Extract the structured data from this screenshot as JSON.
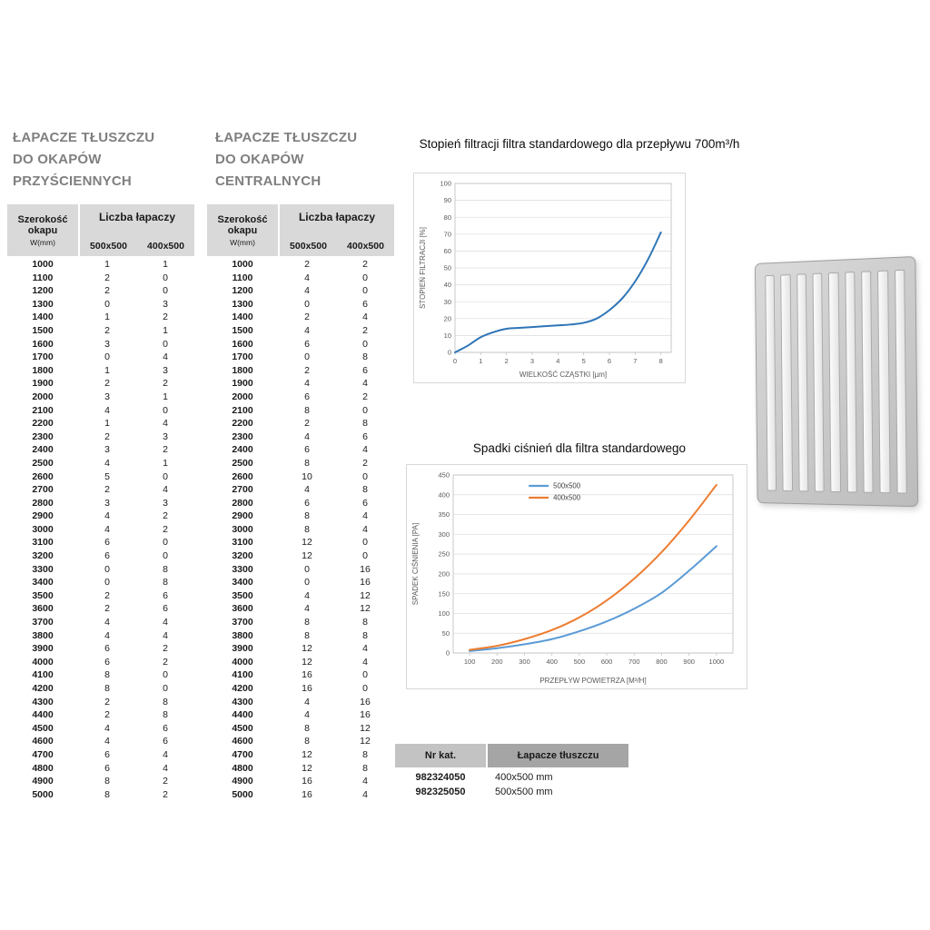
{
  "colors": {
    "table_header_bg": "#d9d9d9",
    "section_title_gray": "#7f7f7f"
  },
  "left_table": {
    "title": "ŁAPACZE TŁUSZCZU\nDO OKAPÓW\nPRZYŚCIENNYCH",
    "header": {
      "width_label": "Szerokość okapu",
      "width_unit": "W(mm)",
      "group_label": "Liczba łapaczy",
      "columns": [
        "500x500",
        "400x500"
      ]
    },
    "rows": [
      [
        "1000",
        1,
        1
      ],
      [
        "1100",
        2,
        0
      ],
      [
        "1200",
        2,
        0
      ],
      [
        "1300",
        0,
        3
      ],
      [
        "1400",
        1,
        2
      ],
      [
        "1500",
        2,
        1
      ],
      [
        "1600",
        3,
        0
      ],
      [
        "1700",
        0,
        4
      ],
      [
        "1800",
        1,
        3
      ],
      [
        "1900",
        2,
        2
      ],
      [
        "2000",
        3,
        1
      ],
      [
        "2100",
        4,
        0
      ],
      [
        "2200",
        1,
        4
      ],
      [
        "2300",
        2,
        3
      ],
      [
        "2400",
        3,
        2
      ],
      [
        "2500",
        4,
        1
      ],
      [
        "2600",
        5,
        0
      ],
      [
        "2700",
        2,
        4
      ],
      [
        "2800",
        3,
        3
      ],
      [
        "2900",
        4,
        2
      ],
      [
        "3000",
        4,
        2
      ],
      [
        "3100",
        6,
        0
      ],
      [
        "3200",
        6,
        0
      ],
      [
        "3300",
        0,
        8
      ],
      [
        "3400",
        0,
        8
      ],
      [
        "3500",
        2,
        6
      ],
      [
        "3600",
        2,
        6
      ],
      [
        "3700",
        4,
        4
      ],
      [
        "3800",
        4,
        4
      ],
      [
        "3900",
        6,
        2
      ],
      [
        "4000",
        6,
        2
      ],
      [
        "4100",
        8,
        0
      ],
      [
        "4200",
        8,
        0
      ],
      [
        "4300",
        2,
        8
      ],
      [
        "4400",
        2,
        8
      ],
      [
        "4500",
        4,
        6
      ],
      [
        "4600",
        4,
        6
      ],
      [
        "4700",
        6,
        4
      ],
      [
        "4800",
        6,
        4
      ],
      [
        "4900",
        8,
        2
      ],
      [
        "5000",
        8,
        2
      ]
    ]
  },
  "center_table": {
    "title": "ŁAPACZE TŁUSZCZU\nDO OKAPÓW\nCENTRALNYCH",
    "header": {
      "width_label": "Szerokość okapu",
      "width_unit": "W(mm)",
      "group_label": "Liczba łapaczy",
      "columns": [
        "500x500",
        "400x500"
      ]
    },
    "rows": [
      [
        "1000",
        2,
        2
      ],
      [
        "1100",
        4,
        0
      ],
      [
        "1200",
        4,
        0
      ],
      [
        "1300",
        0,
        6
      ],
      [
        "1400",
        2,
        4
      ],
      [
        "1500",
        4,
        2
      ],
      [
        "1600",
        6,
        0
      ],
      [
        "1700",
        0,
        8
      ],
      [
        "1800",
        2,
        6
      ],
      [
        "1900",
        4,
        4
      ],
      [
        "2000",
        6,
        2
      ],
      [
        "2100",
        8,
        0
      ],
      [
        "2200",
        2,
        8
      ],
      [
        "2300",
        4,
        6
      ],
      [
        "2400",
        6,
        4
      ],
      [
        "2500",
        8,
        2
      ],
      [
        "2600",
        10,
        0
      ],
      [
        "2700",
        4,
        8
      ],
      [
        "2800",
        6,
        6
      ],
      [
        "2900",
        8,
        4
      ],
      [
        "3000",
        8,
        4
      ],
      [
        "3100",
        12,
        0
      ],
      [
        "3200",
        12,
        0
      ],
      [
        "3300",
        0,
        16
      ],
      [
        "3400",
        0,
        16
      ],
      [
        "3500",
        4,
        12
      ],
      [
        "3600",
        4,
        12
      ],
      [
        "3700",
        8,
        8
      ],
      [
        "3800",
        8,
        8
      ],
      [
        "3900",
        12,
        4
      ],
      [
        "4000",
        12,
        4
      ],
      [
        "4100",
        16,
        0
      ],
      [
        "4200",
        16,
        0
      ],
      [
        "4300",
        4,
        16
      ],
      [
        "4400",
        4,
        16
      ],
      [
        "4500",
        8,
        12
      ],
      [
        "4600",
        8,
        12
      ],
      [
        "4700",
        12,
        8
      ],
      [
        "4800",
        12,
        8
      ],
      [
        "4900",
        16,
        4
      ],
      [
        "5000",
        16,
        4
      ]
    ]
  },
  "chart_data": [
    {
      "type": "line",
      "title": "Stopień filtracji filtra standardowego dla przepływu 700m³/h",
      "xlabel": "WIELKOŚĆ CZĄSTKI [µm]",
      "ylabel": "STOPIEŃ FILTRACJI [%]",
      "xlim": [
        0,
        8.4
      ],
      "ylim": [
        0,
        100
      ],
      "xticks": [
        0,
        1,
        2,
        3,
        4,
        5,
        6,
        7,
        8
      ],
      "yticks": [
        0,
        10,
        20,
        30,
        40,
        50,
        60,
        70,
        80,
        90,
        100
      ],
      "grid": "horizontal",
      "series": [
        {
          "name": "stopień filtracji",
          "color": "#2e75b6",
          "x": [
            0,
            0.5,
            1,
            1.5,
            2,
            2.5,
            3,
            3.5,
            4,
            4.5,
            5,
            5.5,
            6,
            6.5,
            7,
            7.5,
            8
          ],
          "y": [
            0,
            4,
            9,
            12,
            14,
            14.5,
            15,
            15.5,
            16,
            16.5,
            17.5,
            20,
            25,
            32,
            42,
            55,
            71
          ]
        }
      ]
    },
    {
      "type": "line",
      "title": "Spadki ciśnień dla filtra standardowego",
      "xlabel": "PRZEPŁYW POWIETRZA [M³/H]",
      "ylabel": "SPADEK CIŚNIENIA [PA]",
      "xlim": [
        40,
        1060
      ],
      "ylim": [
        0,
        450
      ],
      "xticks": [
        100,
        200,
        300,
        400,
        500,
        600,
        700,
        800,
        900,
        1000
      ],
      "yticks": [
        0,
        50,
        100,
        150,
        200,
        250,
        300,
        350,
        400,
        450
      ],
      "grid": "horizontal",
      "legend_position": "top-center",
      "series": [
        {
          "name": "500x500",
          "color": "#5b9bd5",
          "x": [
            100,
            200,
            300,
            400,
            500,
            600,
            700,
            800,
            900,
            1000
          ],
          "y": [
            5,
            12,
            22,
            35,
            55,
            80,
            112,
            152,
            208,
            270
          ]
        },
        {
          "name": "400x500",
          "color": "#ed7d31",
          "x": [
            100,
            200,
            300,
            400,
            500,
            600,
            700,
            800,
            900,
            1000
          ],
          "y": [
            8,
            18,
            35,
            58,
            90,
            133,
            188,
            255,
            335,
            425
          ]
        }
      ]
    }
  ],
  "catalog_table": {
    "headers": [
      "Nr kat.",
      "Łapacze tłuszczu"
    ],
    "rows": [
      [
        "982324050",
        "400x500 mm"
      ],
      [
        "982325050",
        "500x500 mm"
      ]
    ]
  }
}
